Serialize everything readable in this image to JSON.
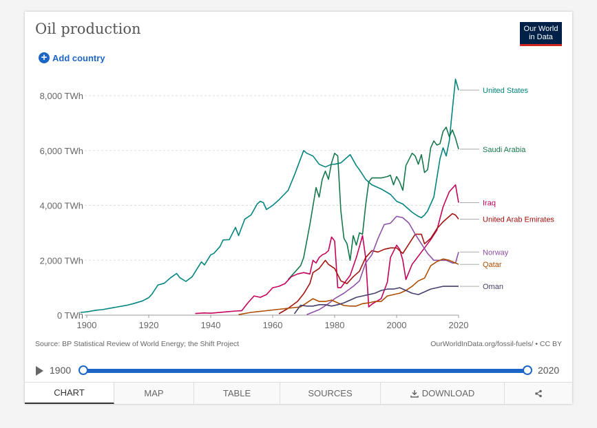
{
  "header": {
    "title": "Oil production",
    "logo_line1": "Our World",
    "logo_line2": "in Data",
    "add_country": "Add country"
  },
  "footer": {
    "source": "Source: BP Statistical Review of World Energy; the Shift Project",
    "link": "OurWorldInData.org/fossil-fuels/ • CC BY"
  },
  "timeline": {
    "start": "1900",
    "end": "2020"
  },
  "tabs": [
    {
      "label": "CHART",
      "icon": ""
    },
    {
      "label": "MAP",
      "icon": ""
    },
    {
      "label": "TABLE",
      "icon": ""
    },
    {
      "label": "SOURCES",
      "icon": ""
    },
    {
      "label": "DOWNLOAD",
      "icon": "download-icon"
    },
    {
      "label": "",
      "icon": "share-icon"
    }
  ],
  "chart_data": {
    "type": "line",
    "title": "Oil production",
    "xlabel": "",
    "ylabel": "",
    "xlim": [
      1900,
      2020
    ],
    "ylim": [
      0,
      8000
    ],
    "x_ticks": [
      1900,
      1920,
      1940,
      1960,
      1980,
      2000,
      2020
    ],
    "y_ticks": [
      0,
      2000,
      4000,
      6000,
      8000
    ],
    "y_tick_labels": [
      "0 TWh",
      "2,000 TWh",
      "4,000 TWh",
      "6,000 TWh",
      "8,000 TWh"
    ],
    "grid": "horizontal dashed",
    "legend": "labels at line ends (right)",
    "series": [
      {
        "name": "United States",
        "color": "#00847e",
        "points": [
          [
            1898,
            100
          ],
          [
            1900,
            120
          ],
          [
            1903,
            180
          ],
          [
            1905,
            200
          ],
          [
            1908,
            260
          ],
          [
            1910,
            300
          ],
          [
            1913,
            360
          ],
          [
            1915,
            420
          ],
          [
            1918,
            520
          ],
          [
            1920,
            640
          ],
          [
            1921,
            760
          ],
          [
            1923,
            1100
          ],
          [
            1925,
            1160
          ],
          [
            1927,
            1360
          ],
          [
            1929,
            1520
          ],
          [
            1930,
            1370
          ],
          [
            1932,
            1230
          ],
          [
            1934,
            1400
          ],
          [
            1937,
            1940
          ],
          [
            1938,
            1830
          ],
          [
            1940,
            2200
          ],
          [
            1941,
            2250
          ],
          [
            1943,
            2500
          ],
          [
            1944,
            2740
          ],
          [
            1946,
            2750
          ],
          [
            1948,
            3200
          ],
          [
            1949,
            2900
          ],
          [
            1950,
            3200
          ],
          [
            1951,
            3500
          ],
          [
            1953,
            3650
          ],
          [
            1955,
            4050
          ],
          [
            1956,
            4150
          ],
          [
            1957,
            4100
          ],
          [
            1958,
            3850
          ],
          [
            1960,
            4000
          ],
          [
            1962,
            4200
          ],
          [
            1965,
            4550
          ],
          [
            1967,
            5100
          ],
          [
            1969,
            5700
          ],
          [
            1970,
            6000
          ],
          [
            1971,
            5900
          ],
          [
            1973,
            5800
          ],
          [
            1975,
            5500
          ],
          [
            1977,
            5400
          ],
          [
            1978,
            5450
          ],
          [
            1979,
            5500
          ],
          [
            1980,
            5500
          ],
          [
            1982,
            5550
          ],
          [
            1985,
            5850
          ],
          [
            1987,
            5450
          ],
          [
            1988,
            5300
          ],
          [
            1990,
            4950
          ],
          [
            1992,
            4750
          ],
          [
            1995,
            4600
          ],
          [
            1998,
            4400
          ],
          [
            2000,
            4150
          ],
          [
            2002,
            4050
          ],
          [
            2005,
            3750
          ],
          [
            2007,
            3600
          ],
          [
            2008,
            3550
          ],
          [
            2009,
            3650
          ],
          [
            2010,
            3800
          ],
          [
            2012,
            4300
          ],
          [
            2013,
            5000
          ],
          [
            2014,
            5700
          ],
          [
            2015,
            6100
          ],
          [
            2016,
            5800
          ],
          [
            2017,
            6350
          ],
          [
            2018,
            7500
          ],
          [
            2019,
            8600
          ],
          [
            2020,
            8200
          ]
        ]
      },
      {
        "name": "Saudi Arabia",
        "color": "#15784a",
        "points": [
          [
            1965,
            1300
          ],
          [
            1967,
            1550
          ],
          [
            1969,
            1800
          ],
          [
            1970,
            2100
          ],
          [
            1972,
            3300
          ],
          [
            1974,
            4650
          ],
          [
            1975,
            4300
          ],
          [
            1976,
            4950
          ],
          [
            1977,
            5250
          ],
          [
            1978,
            4950
          ],
          [
            1979,
            5550
          ],
          [
            1980,
            5900
          ],
          [
            1981,
            5800
          ],
          [
            1982,
            3800
          ],
          [
            1983,
            2800
          ],
          [
            1984,
            2600
          ],
          [
            1985,
            2000
          ],
          [
            1986,
            2900
          ],
          [
            1987,
            2550
          ],
          [
            1988,
            3000
          ],
          [
            1989,
            2950
          ],
          [
            1990,
            4000
          ],
          [
            1991,
            4850
          ],
          [
            1992,
            5000
          ],
          [
            1994,
            5000
          ],
          [
            1995,
            5000
          ],
          [
            1997,
            5050
          ],
          [
            1998,
            5100
          ],
          [
            1999,
            4750
          ],
          [
            2000,
            5050
          ],
          [
            2001,
            4850
          ],
          [
            2002,
            4550
          ],
          [
            2003,
            5450
          ],
          [
            2005,
            5900
          ],
          [
            2006,
            5800
          ],
          [
            2007,
            5500
          ],
          [
            2008,
            5850
          ],
          [
            2009,
            5200
          ],
          [
            2010,
            5300
          ],
          [
            2011,
            6100
          ],
          [
            2012,
            6350
          ],
          [
            2013,
            6200
          ],
          [
            2014,
            6250
          ],
          [
            2015,
            6700
          ],
          [
            2016,
            6850
          ],
          [
            2017,
            6500
          ],
          [
            2018,
            6750
          ],
          [
            2019,
            6450
          ],
          [
            2020,
            6050
          ]
        ]
      },
      {
        "name": "Iraq",
        "color": "#c4005a",
        "points": [
          [
            1935,
            60
          ],
          [
            1938,
            80
          ],
          [
            1940,
            70
          ],
          [
            1945,
            120
          ],
          [
            1948,
            150
          ],
          [
            1950,
            160
          ],
          [
            1952,
            450
          ],
          [
            1954,
            700
          ],
          [
            1956,
            650
          ],
          [
            1958,
            750
          ],
          [
            1960,
            1000
          ],
          [
            1962,
            1050
          ],
          [
            1964,
            1150
          ],
          [
            1966,
            1400
          ],
          [
            1968,
            1500
          ],
          [
            1970,
            1550
          ],
          [
            1972,
            1500
          ],
          [
            1973,
            2000
          ],
          [
            1974,
            1900
          ],
          [
            1975,
            2100
          ],
          [
            1976,
            2200
          ],
          [
            1977,
            2250
          ],
          [
            1978,
            2350
          ],
          [
            1979,
            2850
          ],
          [
            1980,
            2700
          ],
          [
            1981,
            1000
          ],
          [
            1982,
            1000
          ],
          [
            1985,
            1450
          ],
          [
            1987,
            2100
          ],
          [
            1989,
            2900
          ],
          [
            1990,
            2100
          ],
          [
            1991,
            300
          ],
          [
            1992,
            400
          ],
          [
            1995,
            600
          ],
          [
            1997,
            1200
          ],
          [
            1998,
            2100
          ],
          [
            2000,
            2550
          ],
          [
            2001,
            2400
          ],
          [
            2002,
            2000
          ],
          [
            2003,
            1300
          ],
          [
            2005,
            1850
          ],
          [
            2007,
            2150
          ],
          [
            2009,
            2450
          ],
          [
            2011,
            2750
          ],
          [
            2013,
            3100
          ],
          [
            2015,
            3950
          ],
          [
            2017,
            4500
          ],
          [
            2019,
            4750
          ],
          [
            2020,
            4100
          ]
        ]
      },
      {
        "name": "United Arab Emirates",
        "color": "#a2120f",
        "points": [
          [
            1962,
            50
          ],
          [
            1965,
            250
          ],
          [
            1968,
            500
          ],
          [
            1970,
            780
          ],
          [
            1972,
            1150
          ],
          [
            1973,
            1550
          ],
          [
            1975,
            1700
          ],
          [
            1977,
            2000
          ],
          [
            1978,
            1850
          ],
          [
            1980,
            1700
          ],
          [
            1982,
            1250
          ],
          [
            1984,
            1150
          ],
          [
            1986,
            1400
          ],
          [
            1988,
            1600
          ],
          [
            1990,
            2100
          ],
          [
            1992,
            2350
          ],
          [
            1994,
            2300
          ],
          [
            1996,
            2400
          ],
          [
            1998,
            2450
          ],
          [
            2000,
            2450
          ],
          [
            2002,
            2250
          ],
          [
            2004,
            2600
          ],
          [
            2006,
            2950
          ],
          [
            2008,
            2950
          ],
          [
            2009,
            2600
          ],
          [
            2011,
            2800
          ],
          [
            2013,
            3150
          ],
          [
            2015,
            3400
          ],
          [
            2017,
            3600
          ],
          [
            2018,
            3700
          ],
          [
            2019,
            3650
          ],
          [
            2020,
            3500
          ]
        ]
      },
      {
        "name": "Norway",
        "color": "#8c4fa6",
        "points": [
          [
            1971,
            20
          ],
          [
            1975,
            200
          ],
          [
            1978,
            420
          ],
          [
            1980,
            600
          ],
          [
            1983,
            800
          ],
          [
            1986,
            1050
          ],
          [
            1988,
            1250
          ],
          [
            1990,
            1900
          ],
          [
            1992,
            2200
          ],
          [
            1994,
            2800
          ],
          [
            1996,
            3300
          ],
          [
            1998,
            3350
          ],
          [
            2000,
            3600
          ],
          [
            2002,
            3550
          ],
          [
            2004,
            3350
          ],
          [
            2006,
            2950
          ],
          [
            2008,
            2600
          ],
          [
            2010,
            2250
          ],
          [
            2012,
            2000
          ],
          [
            2014,
            2000
          ],
          [
            2016,
            2000
          ],
          [
            2018,
            1900
          ],
          [
            2019,
            1900
          ],
          [
            2020,
            2300
          ]
        ]
      },
      {
        "name": "Qatar",
        "color": "#ad4c00",
        "points": [
          [
            1949,
            20
          ],
          [
            1953,
            100
          ],
          [
            1957,
            150
          ],
          [
            1961,
            200
          ],
          [
            1965,
            250
          ],
          [
            1969,
            300
          ],
          [
            1971,
            450
          ],
          [
            1973,
            600
          ],
          [
            1975,
            500
          ],
          [
            1977,
            500
          ],
          [
            1979,
            550
          ],
          [
            1981,
            450
          ],
          [
            1983,
            350
          ],
          [
            1985,
            330
          ],
          [
            1987,
            330
          ],
          [
            1989,
            420
          ],
          [
            1991,
            450
          ],
          [
            1993,
            500
          ],
          [
            1995,
            500
          ],
          [
            1997,
            700
          ],
          [
            1999,
            750
          ],
          [
            2001,
            800
          ],
          [
            2003,
            900
          ],
          [
            2005,
            1050
          ],
          [
            2007,
            1250
          ],
          [
            2009,
            1350
          ],
          [
            2011,
            1800
          ],
          [
            2013,
            1950
          ],
          [
            2015,
            2050
          ],
          [
            2017,
            2000
          ],
          [
            2019,
            1900
          ],
          [
            2020,
            1850
          ]
        ]
      },
      {
        "name": "Oman",
        "color": "#473c6b",
        "points": [
          [
            1967,
            50
          ],
          [
            1969,
            360
          ],
          [
            1971,
            330
          ],
          [
            1973,
            330
          ],
          [
            1975,
            380
          ],
          [
            1977,
            380
          ],
          [
            1979,
            330
          ],
          [
            1981,
            380
          ],
          [
            1983,
            450
          ],
          [
            1985,
            550
          ],
          [
            1987,
            650
          ],
          [
            1989,
            700
          ],
          [
            1991,
            750
          ],
          [
            1993,
            800
          ],
          [
            1995,
            900
          ],
          [
            1997,
            950
          ],
          [
            1999,
            950
          ],
          [
            2001,
            1000
          ],
          [
            2003,
            900
          ],
          [
            2005,
            800
          ],
          [
            2007,
            750
          ],
          [
            2009,
            850
          ],
          [
            2011,
            950
          ],
          [
            2013,
            1000
          ],
          [
            2015,
            1050
          ],
          [
            2017,
            1050
          ],
          [
            2019,
            1050
          ],
          [
            2020,
            1050
          ]
        ]
      }
    ]
  }
}
